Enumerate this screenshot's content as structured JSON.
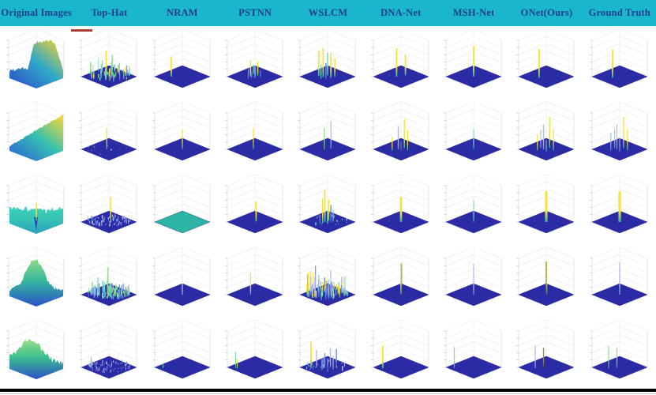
{
  "figure": {
    "header": {
      "labels": [
        "Original Images",
        "Top-Hat",
        "NRAM",
        "PSTNN",
        "WSLCM",
        "DNA-Net",
        "MSH-Net",
        "ONet(Ours)",
        "Ground Truth"
      ],
      "bg": "#1ab6ce",
      "text_color": "#1c3f8f"
    },
    "red_mark": {
      "color": "#a84038"
    },
    "footer_bar_color": "#000000"
  },
  "chart_data": {
    "type": "3d-surface-grid",
    "title": "",
    "description": "Qualitative comparison: 5 infrared scenes rendered as 3D intensity surfaces (first column) and detection result saliency maps of 8 methods, each a flat dark-blue plane with target spikes.",
    "columns": [
      "Original Images",
      "Top-Hat",
      "NRAM",
      "PSTNN",
      "WSLCM",
      "DNA-Net",
      "MSH-Net",
      "ONet(Ours)",
      "Ground Truth"
    ],
    "rows": 5,
    "floor_color": "#2b2ba6",
    "floor_edge_color": "#23238f",
    "axis_color": "#d4d4d8",
    "grid_line_color": "#e6e6ea",
    "tick_color": "#9a9aa0",
    "palette": {
      "y": [
        "#f5e33c",
        "#2fae9e"
      ],
      "t": [
        "#7fd8cc",
        "#2aa396"
      ],
      "g": [
        "#8fdc8a",
        "#3cb062"
      ],
      "p": [
        "#b8b8e8",
        "#8080c8"
      ],
      "b": [
        "#7090e8",
        "#3c50c0"
      ],
      "d": [
        "#8a8a74",
        "#46463e"
      ],
      "c": [
        "#cfe8f2",
        "#9fc8dc"
      ]
    },
    "cells": [
      [
        {
          "kind": "surface",
          "profile": "plateau",
          "seed": 3,
          "colors": [
            "#2b49c8",
            "#30a8c8",
            "#e8cf35"
          ]
        },
        {
          "kind": "spikes",
          "noise": {
            "seed": 11,
            "count": 55,
            "max_h": 0.5,
            "palette": [
              "b",
              "t",
              "g",
              "y"
            ]
          },
          "spikes": [
            [
              0.45,
              0.5,
              0.72,
              "y",
              1.6
            ],
            [
              0.56,
              0.42,
              0.55,
              "g",
              1.4
            ],
            [
              0.36,
              0.58,
              0.4,
              "t",
              1.3
            ]
          ]
        },
        {
          "kind": "spikes",
          "spikes": [
            [
              0.3,
              0.5,
              0.55,
              "y",
              1.8
            ]
          ]
        },
        {
          "kind": "spikes",
          "spikes": [
            [
              0.42,
              0.5,
              0.45,
              "y",
              1.5
            ],
            [
              0.5,
              0.55,
              0.34,
              "t",
              1.4
            ],
            [
              0.38,
              0.62,
              0.28,
              "b",
              1.3
            ],
            [
              0.55,
              0.45,
              0.4,
              "y",
              1.5
            ],
            [
              0.47,
              0.4,
              0.26,
              "t",
              1.2
            ],
            [
              0.6,
              0.55,
              0.2,
              "b",
              1.1
            ],
            [
              0.44,
              0.58,
              0.18,
              "b",
              1.1
            ]
          ]
        },
        {
          "kind": "spikes",
          "spikes": [
            [
              0.34,
              0.46,
              0.7,
              "y",
              1.8
            ],
            [
              0.42,
              0.52,
              0.8,
              "y",
              1.8
            ],
            [
              0.5,
              0.44,
              0.62,
              "t",
              1.6
            ],
            [
              0.56,
              0.55,
              0.68,
              "y",
              1.8
            ],
            [
              0.47,
              0.62,
              0.45,
              "b",
              1.4
            ],
            [
              0.38,
              0.6,
              0.4,
              "t",
              1.4
            ],
            [
              0.63,
              0.5,
              0.5,
              "y",
              1.5
            ]
          ]
        },
        {
          "kind": "spikes",
          "spikes": [
            [
              0.42,
              0.5,
              0.78,
              "y",
              1.9
            ],
            [
              0.58,
              0.44,
              0.58,
              "y",
              1.8
            ]
          ]
        },
        {
          "kind": "spikes",
          "spikes": [
            [
              0.5,
              0.5,
              0.85,
              "y",
              1.9
            ]
          ]
        },
        {
          "kind": "spikes",
          "spikes": [
            [
              0.37,
              0.55,
              0.8,
              "y",
              1.9
            ]
          ]
        },
        {
          "kind": "spikes",
          "spikes": [
            [
              0.37,
              0.55,
              0.78,
              "y",
              1.9
            ]
          ]
        }
      ],
      [
        {
          "kind": "surface",
          "profile": "ramp",
          "seed": 5,
          "colors": [
            "#2b5cd8",
            "#35c0b0",
            "#ecd53c"
          ]
        },
        {
          "kind": "spikes",
          "noise": {
            "seed": 7,
            "count": 10,
            "max_h": 0.07,
            "palette": [
              "b",
              "p"
            ]
          },
          "spikes": [
            [
              0.46,
              0.5,
              0.6,
              "y",
              1.2
            ]
          ]
        },
        {
          "kind": "spikes",
          "spikes": [
            [
              0.5,
              0.5,
              0.55,
              "y",
              1.2
            ]
          ]
        },
        {
          "kind": "spikes",
          "spikes": [
            [
              0.47,
              0.5,
              0.6,
              "y",
              1.2
            ]
          ]
        },
        {
          "kind": "spikes",
          "spikes": [
            [
              0.44,
              0.52,
              0.6,
              "g",
              1.2
            ],
            [
              0.56,
              0.45,
              0.75,
              "p",
              1.3
            ]
          ]
        },
        {
          "kind": "spikes",
          "spikes": [
            [
              0.34,
              0.56,
              0.38,
              "y",
              1.2
            ],
            [
              0.45,
              0.5,
              0.64,
              "p",
              1.4
            ],
            [
              0.56,
              0.44,
              0.8,
              "y",
              1.4
            ],
            [
              0.62,
              0.55,
              0.55,
              "y",
              1.2
            ],
            [
              0.5,
              0.6,
              0.28,
              "d",
              1.0
            ]
          ]
        },
        {
          "kind": "spikes",
          "spikes": [
            [
              0.5,
              0.5,
              0.55,
              "t",
              1.2
            ]
          ]
        },
        {
          "kind": "spikes",
          "spikes": [
            [
              0.34,
              0.56,
              0.45,
              "y",
              1.2
            ],
            [
              0.45,
              0.5,
              0.68,
              "p",
              1.4
            ],
            [
              0.56,
              0.44,
              0.85,
              "y",
              1.4
            ],
            [
              0.63,
              0.55,
              0.6,
              "y",
              1.2
            ],
            [
              0.5,
              0.62,
              0.33,
              "t",
              1.0
            ],
            [
              0.4,
              0.44,
              0.5,
              "p",
              1.1
            ]
          ]
        },
        {
          "kind": "spikes",
          "spikes": [
            [
              0.34,
              0.56,
              0.5,
              "t",
              1.2
            ],
            [
              0.45,
              0.5,
              0.68,
              "g",
              1.2
            ],
            [
              0.57,
              0.44,
              0.85,
              "y",
              1.4
            ],
            [
              0.64,
              0.55,
              0.6,
              "y",
              1.2
            ],
            [
              0.5,
              0.6,
              0.38,
              "p",
              1.0
            ],
            [
              0.41,
              0.44,
              0.52,
              "p",
              1.1
            ]
          ]
        }
      ],
      [
        {
          "kind": "surface",
          "profile": "noisyflat",
          "seed": 9,
          "colors": [
            "#2d9fc0",
            "#35c4b4",
            "#3fd0c0"
          ],
          "spikes": [
            [
              0.5,
              0.45,
              0.5,
              "y",
              1.6
            ]
          ]
        },
        {
          "kind": "spikes",
          "noise": {
            "seed": 22,
            "count": 85,
            "max_h": 0.16,
            "palette": [
              "b",
              "p"
            ]
          },
          "spikes": [
            [
              0.53,
              0.48,
              0.68,
              "y",
              1.5
            ]
          ]
        },
        {
          "kind": "flat",
          "floor": "#2cb5a4"
        },
        {
          "kind": "spikes",
          "spikes": [
            [
              0.52,
              0.48,
              0.55,
              "y",
              1.7
            ]
          ]
        },
        {
          "kind": "spikes",
          "noise": {
            "seed": 5,
            "count": 14,
            "max_h": 0.12,
            "palette": [
              "b",
              "t"
            ]
          },
          "spikes": [
            [
              0.45,
              0.5,
              0.9,
              "y",
              1.8
            ],
            [
              0.41,
              0.56,
              0.68,
              "y",
              1.5
            ],
            [
              0.52,
              0.45,
              0.6,
              "y",
              1.5
            ],
            [
              0.5,
              0.6,
              0.38,
              "t",
              1.4
            ],
            [
              0.56,
              0.55,
              0.5,
              "b",
              1.4
            ],
            [
              0.36,
              0.6,
              0.3,
              "b",
              1.2
            ],
            [
              0.6,
              0.5,
              0.34,
              "t",
              1.2
            ]
          ]
        },
        {
          "kind": "spikes",
          "spikes": [
            [
              0.5,
              0.5,
              0.68,
              "y",
              2.6
            ]
          ]
        },
        {
          "kind": "spikes",
          "spikes": [
            [
              0.5,
              0.5,
              0.6,
              "t",
              1.2
            ]
          ]
        },
        {
          "kind": "spikes",
          "spikes": [
            [
              0.5,
              0.5,
              0.85,
              "y",
              3.2
            ]
          ]
        },
        {
          "kind": "spikes",
          "spikes": [
            [
              0.5,
              0.5,
              0.85,
              "y",
              3.2
            ]
          ]
        }
      ],
      [
        {
          "kind": "surface",
          "profile": "mountain",
          "seed": 13,
          "colors": [
            "#2b50c8",
            "#35b89e",
            "#8fd984"
          ]
        },
        {
          "kind": "spikes",
          "noise": {
            "seed": 33,
            "count": 95,
            "max_h": 0.42,
            "palette": [
              "b",
              "t",
              "g"
            ]
          },
          "spikes": [
            [
              0.48,
              0.45,
              0.72,
              "g",
              1.5
            ],
            [
              0.3,
              0.55,
              0.5,
              "t",
              1.3
            ]
          ]
        },
        {
          "kind": "spikes",
          "spikes": [
            [
              0.5,
              0.5,
              0.55,
              "c",
              1.0
            ]
          ]
        },
        {
          "kind": "spikes",
          "spikes": [
            [
              0.42,
              0.5,
              0.6,
              "y",
              1.3
            ]
          ]
        },
        {
          "kind": "spikes",
          "noise": {
            "seed": 44,
            "count": 75,
            "max_h": 0.72,
            "palette": [
              "b",
              "t",
              "y",
              "p"
            ]
          },
          "spikes": []
        },
        {
          "kind": "spikes",
          "spikes": [
            [
              0.5,
              0.48,
              0.85,
              "y",
              1.8
            ],
            [
              0.512,
              0.48,
              0.85,
              "d",
              0.9
            ]
          ]
        },
        {
          "kind": "spikes",
          "spikes": [
            [
              0.5,
              0.5,
              0.85,
              "p",
              1.3
            ]
          ]
        },
        {
          "kind": "spikes",
          "spikes": [
            [
              0.5,
              0.48,
              0.9,
              "d",
              1.5
            ],
            [
              0.512,
              0.48,
              0.9,
              "y",
              0.8
            ]
          ]
        },
        {
          "kind": "spikes",
          "spikes": [
            [
              0.5,
              0.5,
              0.88,
              "p",
              1.4
            ]
          ]
        }
      ],
      [
        {
          "kind": "surface",
          "profile": "ridge",
          "seed": 17,
          "colors": [
            "#2b50c8",
            "#3cc08e",
            "#9fdf84"
          ]
        },
        {
          "kind": "spikes",
          "noise": {
            "seed": 55,
            "count": 65,
            "max_h": 0.13,
            "palette": [
              "b",
              "p"
            ]
          },
          "spikes": [
            [
              0.18,
              0.6,
              0.32,
              "t",
              1.2
            ]
          ]
        },
        {
          "kind": "spikes",
          "spikes": [
            [
              0.15,
              0.6,
              0.14,
              "t",
              1.0
            ]
          ]
        },
        {
          "kind": "spikes",
          "spikes": [
            [
              0.15,
              0.58,
              0.45,
              "t",
              1.2
            ],
            [
              0.18,
              0.63,
              0.28,
              "y",
              1.0
            ]
          ]
        },
        {
          "kind": "spikes",
          "noise": {
            "seed": 6,
            "count": 22,
            "max_h": 0.2,
            "palette": [
              "b",
              "p"
            ]
          },
          "spikes": [
            [
              0.2,
              0.55,
              0.72,
              "y",
              1.8
            ],
            [
              0.3,
              0.5,
              0.48,
              "p",
              1.4
            ],
            [
              0.45,
              0.55,
              0.42,
              "b",
              1.4
            ],
            [
              0.55,
              0.5,
              0.52,
              "p",
              1.4
            ],
            [
              0.66,
              0.45,
              0.48,
              "b",
              1.4
            ],
            [
              0.4,
              0.62,
              0.3,
              "t",
              1.2
            ],
            [
              0.5,
              0.63,
              0.33,
              "b",
              1.2
            ],
            [
              0.6,
              0.6,
              0.38,
              "p",
              1.2
            ]
          ]
        },
        {
          "kind": "spikes",
          "spikes": [
            [
              0.17,
              0.58,
              0.62,
              "y",
              1.8
            ]
          ]
        },
        {
          "kind": "spikes",
          "spikes": [
            [
              0.15,
              0.58,
              0.58,
              "g",
              1.2
            ]
          ]
        },
        {
          "kind": "spikes",
          "spikes": [
            [
              0.3,
              0.55,
              0.62,
              "p",
              1.3
            ],
            [
              0.45,
              0.52,
              0.55,
              "d",
              1.3
            ]
          ]
        },
        {
          "kind": "spikes",
          "spikes": [
            [
              0.3,
              0.55,
              0.62,
              "g",
              1.2
            ],
            [
              0.45,
              0.52,
              0.55,
              "g",
              1.2
            ]
          ]
        }
      ]
    ]
  }
}
